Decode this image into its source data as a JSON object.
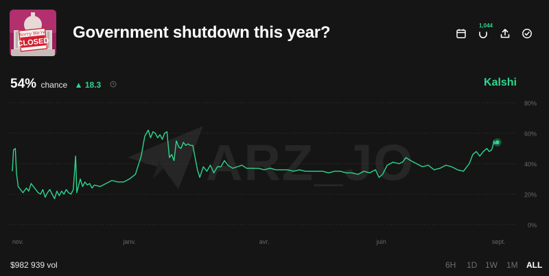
{
  "market": {
    "title": "Government shutdown this year?",
    "image_sign_top": "Sorry We're",
    "image_sign_main": "CLOSED"
  },
  "toolbar": {
    "calendar_icon": "calendar-icon",
    "comments_icon": "comments-icon",
    "comment_count": "1,044",
    "share_icon": "share-icon",
    "check_icon": "check-circle-icon"
  },
  "stats": {
    "chance_value": "54%",
    "chance_label": "chance",
    "delta_arrow": "▲",
    "delta_value": "18.3",
    "source": "Kalshi",
    "volume": "$982 939 vol"
  },
  "watermark": "ARZ_JO",
  "time_ranges": [
    {
      "label": "6H",
      "active": false
    },
    {
      "label": "1D",
      "active": false
    },
    {
      "label": "1W",
      "active": false
    },
    {
      "label": "1M",
      "active": false
    },
    {
      "label": "ALL",
      "active": true
    }
  ],
  "colors": {
    "accent": "#2fd68e",
    "background": "#151515",
    "grid": "#3a3a3a",
    "axis_text": "#6a6a6a"
  },
  "chart_data": {
    "type": "line",
    "title": "",
    "xlabel": "",
    "ylabel": "",
    "ylim": [
      0,
      80
    ],
    "yticks": [
      0,
      20,
      40,
      60,
      80
    ],
    "ytick_labels": [
      "0%",
      "20%",
      "40%",
      "60%",
      "80%"
    ],
    "x_range": [
      0,
      42
    ],
    "xticks": [
      {
        "x": 0,
        "label": "nov."
      },
      {
        "x": 10,
        "label": "janv."
      },
      {
        "x": 21.5,
        "label": "avr."
      },
      {
        "x": 31.5,
        "label": "juin"
      },
      {
        "x": 41.5,
        "label": "sept."
      }
    ],
    "series": [
      {
        "name": "Yes",
        "x": [
          0,
          0.1,
          0.25,
          0.35,
          0.5,
          0.7,
          0.9,
          1.2,
          1.4,
          1.6,
          1.8,
          2.0,
          2.2,
          2.4,
          2.6,
          2.8,
          3.0,
          3.2,
          3.4,
          3.6,
          3.8,
          4.0,
          4.2,
          4.4,
          4.6,
          4.8,
          5.0,
          5.2,
          5.4,
          5.5,
          5.6,
          5.8,
          6.0,
          6.2,
          6.4,
          6.6,
          6.8,
          7.0,
          7.5,
          8.0,
          8.5,
          9.0,
          9.5,
          10.0,
          10.5,
          11.0,
          11.3,
          11.6,
          11.8,
          12.0,
          12.2,
          12.4,
          12.6,
          12.8,
          13.0,
          13.2,
          13.4,
          13.6,
          13.8,
          14.0,
          14.2,
          14.4,
          14.6,
          14.8,
          15.0,
          15.2,
          15.4,
          15.6,
          15.8,
          16.0,
          16.3,
          16.6,
          16.9,
          17.2,
          17.5,
          17.8,
          18.1,
          18.4,
          18.8,
          19.2,
          19.6,
          20.0,
          20.5,
          21.0,
          21.5,
          22.0,
          22.5,
          23.0,
          23.5,
          24.0,
          24.5,
          25.0,
          25.5,
          26.0,
          26.5,
          27.0,
          27.5,
          28.0,
          28.5,
          29.0,
          29.5,
          30.0,
          30.5,
          31.0,
          31.3,
          31.6,
          32.0,
          32.5,
          33.0,
          33.3,
          33.6,
          34.0,
          34.5,
          35.0,
          35.5,
          36.0,
          36.5,
          37.0,
          37.5,
          38.0,
          38.5,
          39.0,
          39.3,
          39.6,
          39.9,
          40.2,
          40.5,
          40.7,
          40.9,
          41.0,
          41.1,
          41.2,
          41.3,
          41.4
        ],
        "values": [
          35,
          49,
          50,
          34,
          25,
          23,
          21,
          24,
          22,
          27,
          25,
          23,
          21,
          20,
          23,
          18,
          21,
          23,
          20,
          17,
          22,
          19,
          22,
          20,
          23,
          21,
          20,
          23,
          45,
          21,
          24,
          30,
          25,
          28,
          26,
          27,
          24,
          26,
          25,
          27,
          29,
          28,
          28,
          30,
          33,
          45,
          58,
          62,
          57,
          61,
          60,
          57,
          59,
          56,
          60,
          61,
          44,
          46,
          42,
          55,
          51,
          50,
          54,
          52,
          53,
          52,
          52,
          44,
          36,
          31,
          38,
          35,
          39,
          34,
          38,
          38,
          42,
          39,
          37,
          38,
          39,
          37,
          37,
          37,
          36,
          37,
          36,
          36,
          36,
          35,
          36,
          35,
          35,
          35,
          35,
          34,
          35,
          35,
          34,
          34,
          33,
          35,
          34,
          36,
          31,
          33,
          39,
          41,
          40,
          41,
          44,
          42,
          40,
          38,
          39,
          36,
          37,
          39,
          38,
          36,
          35,
          40,
          46,
          48,
          45,
          48,
          50,
          48,
          49,
          51,
          55,
          53,
          54,
          54
        ]
      }
    ]
  }
}
